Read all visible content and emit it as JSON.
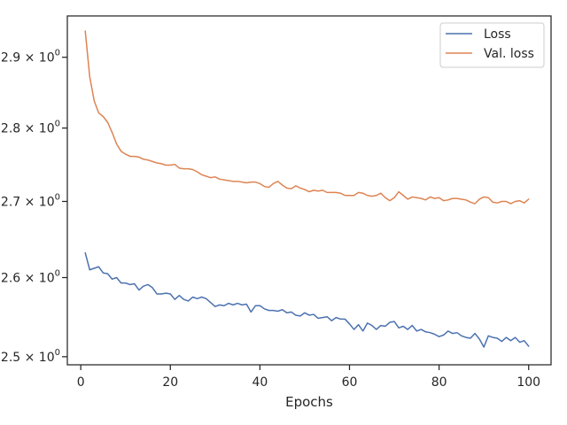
{
  "chart_data": {
    "type": "line",
    "title": "",
    "xlabel": "Epochs",
    "ylabel": "",
    "xlim": [
      -3,
      105
    ],
    "ylim": [
      2.49,
      2.96
    ],
    "yscale": "log",
    "grid": false,
    "legend_position": "top-right",
    "x_ticks": [
      0,
      20,
      40,
      60,
      80,
      100
    ],
    "x_tick_labels": [
      "0",
      "20",
      "40",
      "60",
      "80",
      "100"
    ],
    "y_ticks": [
      {
        "value": 2.5,
        "base": "2.5",
        "exp": "0"
      },
      {
        "value": 2.6,
        "base": "2.6",
        "exp": "0"
      },
      {
        "value": 2.7,
        "base": "2.7",
        "exp": "0"
      },
      {
        "value": 2.8,
        "base": "2.8",
        "exp": "0"
      },
      {
        "value": 2.9,
        "base": "2.9",
        "exp": "0"
      }
    ],
    "x": [
      1,
      2,
      3,
      4,
      5,
      6,
      7,
      8,
      9,
      10,
      11,
      12,
      13,
      14,
      15,
      16,
      17,
      18,
      19,
      20,
      21,
      22,
      23,
      24,
      25,
      26,
      27,
      28,
      29,
      30,
      31,
      32,
      33,
      34,
      35,
      36,
      37,
      38,
      39,
      40,
      41,
      42,
      43,
      44,
      45,
      46,
      47,
      48,
      49,
      50,
      51,
      52,
      53,
      54,
      55,
      56,
      57,
      58,
      59,
      60,
      61,
      62,
      63,
      64,
      65,
      66,
      67,
      68,
      69,
      70,
      71,
      72,
      73,
      74,
      75,
      76,
      77,
      78,
      79,
      80,
      81,
      82,
      83,
      84,
      85,
      86,
      87,
      88,
      89,
      90,
      91,
      92,
      93,
      94,
      95,
      96,
      97,
      98,
      99,
      100
    ],
    "series": [
      {
        "name": "Loss",
        "color": "#4c72b0",
        "values": [
          2.632,
          2.61,
          2.612,
          2.614,
          2.606,
          2.605,
          2.598,
          2.6,
          2.593,
          2.593,
          2.591,
          2.592,
          2.584,
          2.589,
          2.591,
          2.587,
          2.579,
          2.579,
          2.58,
          2.579,
          2.572,
          2.577,
          2.572,
          2.57,
          2.575,
          2.573,
          2.575,
          2.573,
          2.568,
          2.563,
          2.565,
          2.564,
          2.567,
          2.565,
          2.567,
          2.565,
          2.566,
          2.556,
          2.564,
          2.564,
          2.56,
          2.558,
          2.558,
          2.557,
          2.559,
          2.555,
          2.556,
          2.552,
          2.551,
          2.555,
          2.552,
          2.553,
          2.548,
          2.549,
          2.55,
          2.545,
          2.549,
          2.547,
          2.547,
          2.541,
          2.534,
          2.54,
          2.532,
          2.542,
          2.539,
          2.534,
          2.539,
          2.538,
          2.543,
          2.544,
          2.536,
          2.538,
          2.534,
          2.539,
          2.532,
          2.534,
          2.531,
          2.53,
          2.528,
          2.525,
          2.527,
          2.532,
          2.529,
          2.53,
          2.526,
          2.524,
          2.523,
          2.529,
          2.522,
          2.512,
          2.526,
          2.524,
          2.523,
          2.519,
          2.524,
          2.52,
          2.524,
          2.518,
          2.52,
          2.513
        ]
      },
      {
        "name": "Val. loss",
        "color": "#dd8452",
        "values": [
          2.938,
          2.872,
          2.838,
          2.821,
          2.816,
          2.808,
          2.794,
          2.778,
          2.768,
          2.764,
          2.761,
          2.761,
          2.76,
          2.757,
          2.756,
          2.754,
          2.752,
          2.751,
          2.749,
          2.749,
          2.75,
          2.745,
          2.744,
          2.744,
          2.743,
          2.74,
          2.736,
          2.734,
          2.732,
          2.733,
          2.73,
          2.729,
          2.728,
          2.727,
          2.727,
          2.726,
          2.725,
          2.726,
          2.726,
          2.724,
          2.72,
          2.719,
          2.724,
          2.727,
          2.722,
          2.718,
          2.717,
          2.721,
          2.718,
          2.716,
          2.713,
          2.715,
          2.714,
          2.715,
          2.712,
          2.712,
          2.712,
          2.711,
          2.708,
          2.708,
          2.708,
          2.712,
          2.711,
          2.708,
          2.707,
          2.708,
          2.711,
          2.705,
          2.701,
          2.705,
          2.713,
          2.708,
          2.703,
          2.706,
          2.705,
          2.704,
          2.702,
          2.706,
          2.704,
          2.705,
          2.701,
          2.702,
          2.704,
          2.704,
          2.703,
          2.702,
          2.699,
          2.697,
          2.703,
          2.706,
          2.705,
          2.699,
          2.698,
          2.7,
          2.7,
          2.697,
          2.7,
          2.701,
          2.698,
          2.703
        ]
      }
    ]
  }
}
